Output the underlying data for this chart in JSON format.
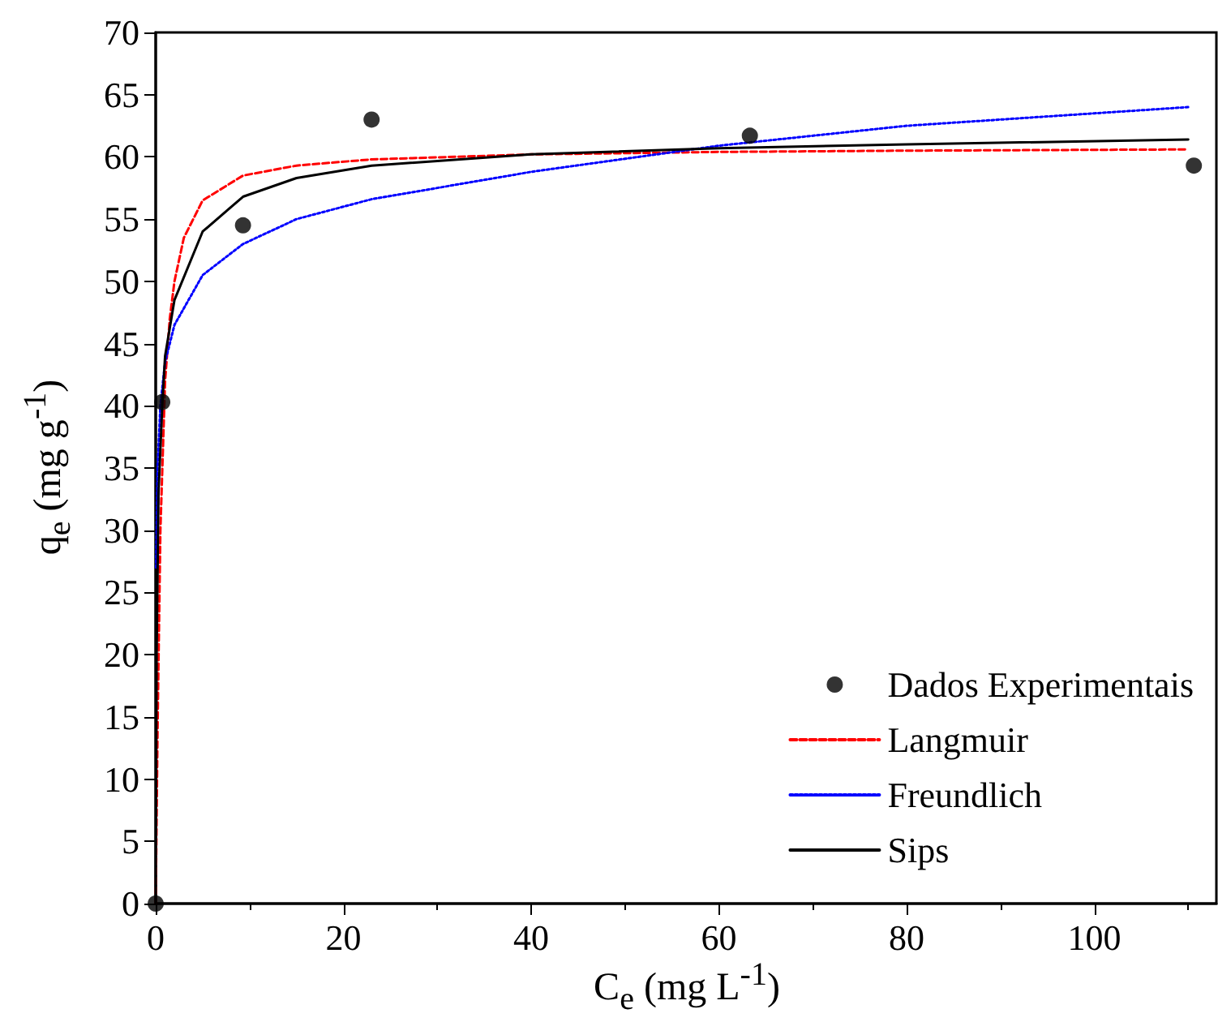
{
  "chart_data": {
    "type": "line",
    "xlabel": "C$_{e}$ (mg L$^{-1}$)",
    "ylabel": "q$_{e}$ (mg g$^{-1}$)",
    "xlim": [
      0,
      113
    ],
    "xticks": [
      0,
      20,
      40,
      60,
      80,
      100
    ],
    "ylim": [
      0,
      70
    ],
    "yticks": [
      0,
      5,
      10,
      15,
      20,
      25,
      30,
      35,
      40,
      45,
      50,
      55,
      60,
      65,
      70
    ],
    "grid": false,
    "legend": "bottom right",
    "series": [
      {
        "name": "Dados Experimentais",
        "type": "scatter",
        "marker": "circle",
        "color": "#000000",
        "x": [
          0,
          0.7,
          9.3,
          23.0,
          63.3,
          110.6
        ],
        "values": [
          0,
          40.3,
          54.5,
          63.0,
          61.7,
          59.3
        ]
      },
      {
        "name": "Langmuir",
        "line_style": "dashed",
        "marker": "none",
        "color": "#ff0000",
        "x": [
          0,
          0.2,
          0.5,
          1,
          1.5,
          2,
          3,
          5,
          9.3,
          15,
          23,
          40,
          60,
          80,
          110
        ],
        "values": [
          0,
          14,
          30,
          42,
          47,
          50,
          53.5,
          56.5,
          58.5,
          59.3,
          59.8,
          60.2,
          60.4,
          60.5,
          60.6
        ]
      },
      {
        "name": "Freundlich",
        "line_style": "dotted",
        "marker": "none",
        "color": "#0000ff",
        "x": [
          0.05,
          0.2,
          0.5,
          1,
          2,
          5,
          9.3,
          15,
          23,
          40,
          60,
          80,
          100,
          110
        ],
        "values": [
          27,
          35,
          40,
          43.5,
          46.5,
          50.5,
          53,
          55,
          56.6,
          58.8,
          60.9,
          62.5,
          63.5,
          64.0
        ]
      },
      {
        "name": "Sips",
        "line_style": "solid",
        "marker": "none",
        "color": "#000000",
        "x": [
          0,
          0.1,
          0.3,
          0.7,
          1,
          2,
          5,
          9.3,
          15,
          23,
          40,
          60,
          80,
          110
        ],
        "values": [
          0,
          20,
          33,
          40,
          44,
          48.5,
          54,
          56.8,
          58.3,
          59.3,
          60.2,
          60.7,
          61,
          61.4
        ]
      }
    ]
  }
}
